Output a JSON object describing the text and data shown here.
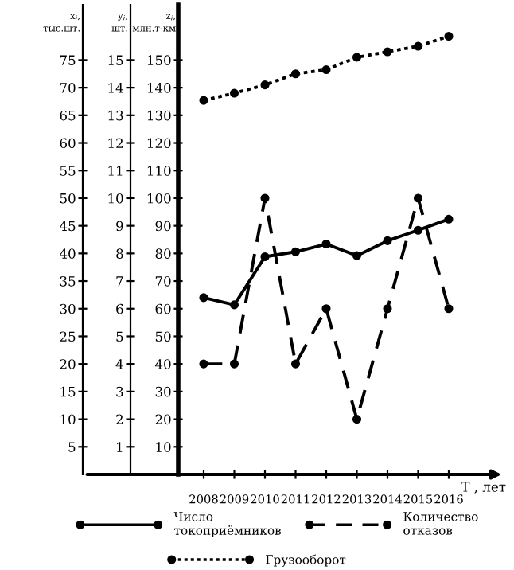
{
  "chart_data": {
    "type": "line",
    "categories": [
      "2008",
      "2009",
      "2010",
      "2011",
      "2012",
      "2013",
      "2014",
      "2015",
      "2016"
    ],
    "xlabel": "T , лет",
    "ylabel": "z$_{i}$,\nмлн.т-км",
    "y2label": "y$_{i}$,\nшт.",
    "y3label": "x$_{i}$,\nтыс.шт.",
    "ylim": [
      0,
      170
    ],
    "yticks": [
      10,
      20,
      30,
      40,
      50,
      60,
      70,
      80,
      90,
      100,
      110,
      120,
      130,
      140,
      150
    ],
    "y2lim": [
      0,
      17
    ],
    "y2ticks": [
      1,
      2,
      3,
      4,
      5,
      6,
      7,
      8,
      9,
      10,
      11,
      12,
      13,
      14,
      15
    ],
    "y3lim": [
      0,
      85
    ],
    "y3ticks": [
      5,
      10,
      15,
      20,
      25,
      30,
      35,
      40,
      45,
      50,
      55,
      60,
      65,
      70,
      75
    ],
    "series": [
      {
        "name": "Число\nтокоприёмников",
        "color": "#000000",
        "axis": "y3",
        "line_style": "solid",
        "values": [
          32,
          30.7,
          39.4,
          40.3,
          41.7,
          39.6,
          42.3,
          44.2,
          46.2
        ]
      },
      {
        "name": "Количество\nотказов",
        "color": "#000000",
        "axis": "y2",
        "line_style": "dashed",
        "values": [
          4,
          4,
          10,
          4,
          6,
          2,
          6,
          10,
          6
        ]
      },
      {
        "name": "Грузооборот",
        "color": "#000000",
        "axis": "y",
        "line_style": "dotted",
        "values": [
          135.4,
          138,
          141,
          145,
          146.5,
          151,
          153,
          155,
          158.6
        ]
      }
    ],
    "marker": "circle",
    "grid": false,
    "legend": "bottom"
  }
}
